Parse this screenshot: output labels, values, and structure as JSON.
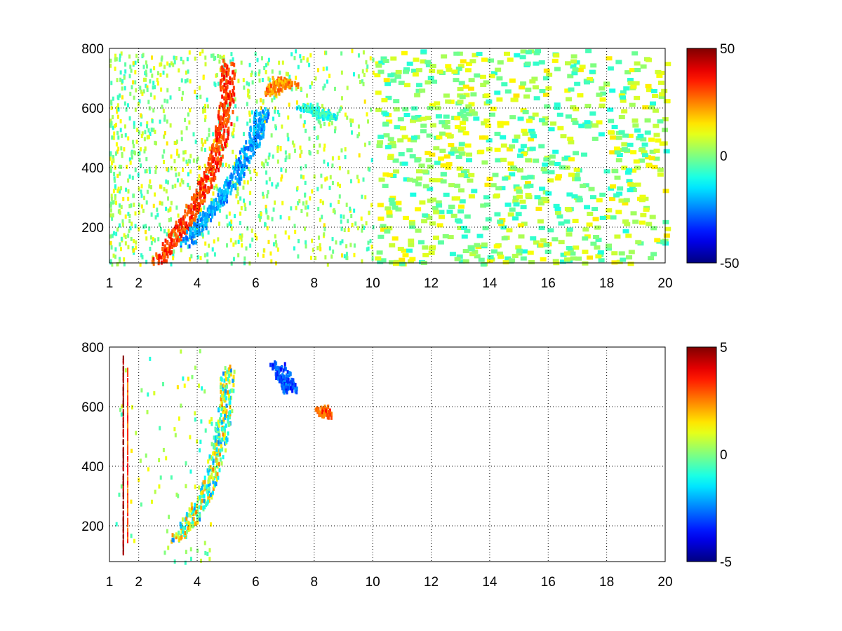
{
  "chart_data": [
    {
      "type": "heatmap",
      "x_ticks": [
        1,
        2,
        4,
        6,
        8,
        10,
        12,
        14,
        16,
        18,
        20
      ],
      "y_ticks": [
        200,
        400,
        600,
        800
      ],
      "xlim": [
        1,
        20
      ],
      "ylim": [
        80,
        800
      ],
      "grid": true,
      "colormap": "jet",
      "colorbar": {
        "ticks": [
          50,
          0,
          -50
        ],
        "range": [
          -50,
          50
        ]
      },
      "colors": {
        "background": "#ffffff",
        "axis": "#000000",
        "grid": "#000000"
      },
      "features": [
        {
          "kind": "positive_ridge",
          "points": [
            [
              2.6,
              85
            ],
            [
              3.2,
              170
            ],
            [
              3.6,
              230
            ],
            [
              4.0,
              300
            ],
            [
              4.4,
              380
            ],
            [
              4.7,
              470
            ],
            [
              4.9,
              560
            ],
            [
              5.0,
              650
            ],
            [
              5.0,
              760
            ]
          ],
          "value": 32
        },
        {
          "kind": "negative_ridge",
          "points": [
            [
              3.6,
              150
            ],
            [
              4.2,
              230
            ],
            [
              4.8,
              300
            ],
            [
              5.3,
              380
            ],
            [
              5.7,
              460
            ],
            [
              6.0,
              520
            ],
            [
              6.2,
              600
            ]
          ],
          "value": -22
        },
        {
          "kind": "positive_blob",
          "points": [
            [
              6.5,
              650
            ],
            [
              6.8,
              700
            ],
            [
              7.2,
              680
            ]
          ],
          "value": 25
        },
        {
          "kind": "negative_tail",
          "points": [
            [
              7.6,
              610
            ],
            [
              8.2,
              590
            ],
            [
              8.6,
              570
            ]
          ],
          "value": -10
        }
      ]
    },
    {
      "type": "heatmap",
      "x_ticks": [
        1,
        2,
        4,
        6,
        8,
        10,
        12,
        14,
        16,
        18,
        20
      ],
      "y_ticks": [
        200,
        400,
        600,
        800
      ],
      "xlim": [
        1,
        20
      ],
      "ylim": [
        80,
        800
      ],
      "grid": true,
      "colormap": "jet",
      "colorbar": {
        "ticks": [
          5,
          0,
          -5
        ],
        "range": [
          -5,
          5
        ]
      },
      "colors": {
        "background": "#ffffff",
        "axis": "#000000",
        "grid": "#000000"
      },
      "features": [
        {
          "kind": "mixed_region",
          "points": [
            [
              3.3,
              160
            ],
            [
              3.8,
              230
            ],
            [
              4.3,
              320
            ],
            [
              4.6,
              420
            ],
            [
              4.8,
              520
            ],
            [
              5.0,
              620
            ],
            [
              5.0,
              740
            ]
          ],
          "value": 0
        },
        {
          "kind": "vertical_line",
          "points": [
            [
              1.45,
              110
            ],
            [
              1.45,
              770
            ]
          ],
          "value": 5
        },
        {
          "kind": "vertical_line",
          "points": [
            [
              1.6,
              150
            ],
            [
              1.6,
              740
            ]
          ],
          "value": 3
        },
        {
          "kind": "cluster",
          "points": [
            [
              6.7,
              750
            ],
            [
              7.0,
              690
            ],
            [
              7.2,
              660
            ]
          ],
          "value": -3
        },
        {
          "kind": "cluster",
          "points": [
            [
              8.2,
              600
            ],
            [
              8.4,
              575
            ]
          ],
          "value": 3
        }
      ]
    }
  ]
}
